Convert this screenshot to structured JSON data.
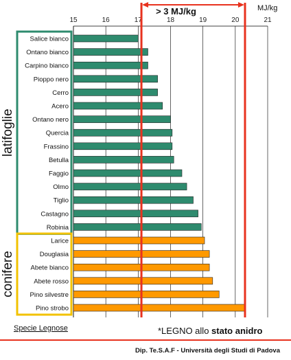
{
  "chart_data": {
    "type": "bar",
    "orientation": "horizontal",
    "unit_label": "MJ/kg",
    "x_ticks": [
      15,
      16,
      17,
      18,
      19,
      20,
      21
    ],
    "xlim": [
      15,
      21
    ],
    "grid": true,
    "categories": [
      "Salice bianco",
      "Ontano bianco",
      "Carpino bianco",
      "Pioppo nero",
      "Cerro",
      "Acero",
      "Ontano nero",
      "Quercia",
      "Frassino",
      "Betulla",
      "Faggio",
      "Olmo",
      "Tiglio",
      "Castagno",
      "Robinia",
      "Larice",
      "Douglasia",
      "Abete bianco",
      "Abete rosso",
      "Pino silvestre",
      "Pino strobo"
    ],
    "values": [
      17.0,
      17.3,
      17.3,
      17.6,
      17.6,
      17.75,
      18.0,
      18.05,
      18.05,
      18.1,
      18.35,
      18.5,
      18.7,
      18.85,
      18.95,
      19.05,
      19.2,
      19.2,
      19.3,
      19.5,
      20.3
    ],
    "series_colors": [
      "#2e8b6e",
      "#2e8b6e",
      "#2e8b6e",
      "#2e8b6e",
      "#2e8b6e",
      "#2e8b6e",
      "#2e8b6e",
      "#2e8b6e",
      "#2e8b6e",
      "#2e8b6e",
      "#2e8b6e",
      "#2e8b6e",
      "#2e8b6e",
      "#2e8b6e",
      "#2e8b6e",
      "#ff9900",
      "#ff9900",
      "#ff9900",
      "#ff9900",
      "#ff9900",
      "#ff9900"
    ],
    "groups": [
      {
        "name": "latifoglie",
        "start": 0,
        "end": 14,
        "color": "#2e8b6e"
      },
      {
        "name": "conifere",
        "start": 15,
        "end": 20,
        "color": "#f2c200"
      }
    ],
    "annotation": {
      "text": "> 3 MJ/kg",
      "from": 17.1,
      "to": 20.3,
      "color": "#e8321e"
    },
    "category_axis_label": "Specie Legnose",
    "note_prefix": "*LEGNO allo ",
    "note_bold": "stato anidro"
  },
  "footer": "Dip. Te.S.A.F - Università degli Studi di Padova",
  "colors": {
    "grid": "#000000",
    "accent_red": "#e8321e"
  }
}
